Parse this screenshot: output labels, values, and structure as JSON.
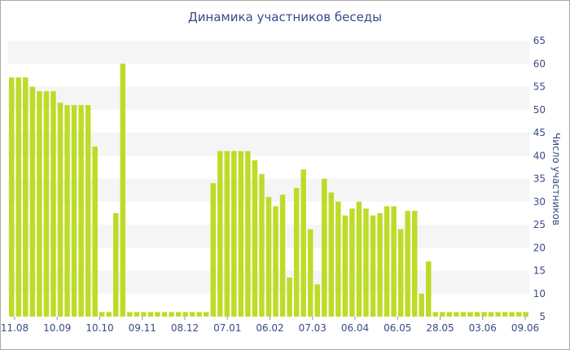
{
  "chart_data": {
    "type": "bar",
    "title": "Динамика участников беседы",
    "xlabel": "",
    "ylabel": "Число участников",
    "ylim": [
      5,
      65
    ],
    "yticks": [
      5,
      10,
      15,
      20,
      25,
      30,
      35,
      40,
      45,
      50,
      55,
      60,
      65
    ],
    "y_axis_side": "right",
    "grid": "alternating horizontal bands",
    "x_tick_labels": [
      "11.08",
      "10.09",
      "10.10",
      "09.11",
      "08.12",
      "07.01",
      "06.02",
      "07.03",
      "06.04",
      "06.05",
      "28.05",
      "03.06",
      "09.06"
    ],
    "values": [
      57,
      57,
      57,
      55,
      54,
      54,
      54,
      51.5,
      51,
      51,
      51,
      51,
      42,
      6,
      6,
      27.5,
      60,
      6,
      6,
      6,
      6,
      6,
      6,
      6,
      6,
      6,
      6,
      6,
      6,
      34,
      41,
      41,
      41,
      41,
      41,
      39,
      36,
      31,
      29,
      31.5,
      13.5,
      33,
      37,
      24,
      12,
      35,
      32,
      30,
      27,
      28.5,
      30,
      28.5,
      27,
      27.5,
      29,
      29,
      24,
      28,
      28,
      10,
      17,
      6,
      6,
      6,
      6,
      6,
      6,
      6,
      6,
      6,
      6,
      6,
      6,
      6,
      6
    ],
    "bar_color": "#bcdc27",
    "band_color": "#f5f5f5"
  }
}
